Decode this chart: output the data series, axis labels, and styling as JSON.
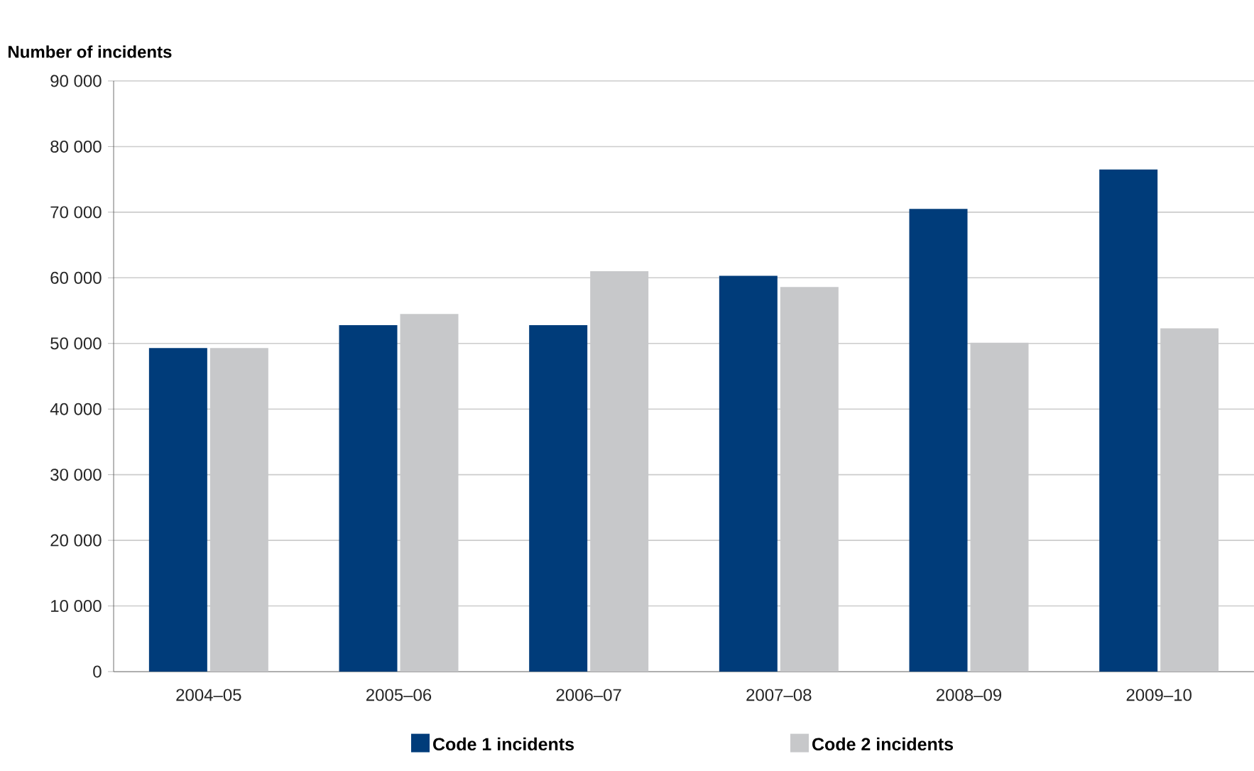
{
  "chart_data": {
    "type": "bar",
    "ylabel": "Number of incidents",
    "categories": [
      "2004–05",
      "2005–06",
      "2006–07",
      "2007–08",
      "2008–09",
      "2009–10"
    ],
    "series": [
      {
        "name": "Code 1 incidents",
        "color": "#003c7a",
        "values": [
          49300,
          52800,
          52800,
          60300,
          70500,
          76500
        ]
      },
      {
        "name": "Code 2 incidents",
        "color": "#c7c8ca",
        "values": [
          49300,
          54500,
          61000,
          58600,
          50100,
          52300
        ]
      }
    ],
    "ylim": [
      0,
      90000
    ],
    "yticks": [
      {
        "value": 0,
        "label": "0"
      },
      {
        "value": 10000,
        "label": "10 000"
      },
      {
        "value": 20000,
        "label": "20 000"
      },
      {
        "value": 30000,
        "label": "30 000"
      },
      {
        "value": 40000,
        "label": "40 000"
      },
      {
        "value": 50000,
        "label": "50 000"
      },
      {
        "value": 60000,
        "label": "60 000"
      },
      {
        "value": 70000,
        "label": "70 000"
      },
      {
        "value": 80000,
        "label": "80 000"
      },
      {
        "value": 90000,
        "label": "90 000"
      }
    ],
    "grid": "y",
    "legend": "bottom"
  }
}
